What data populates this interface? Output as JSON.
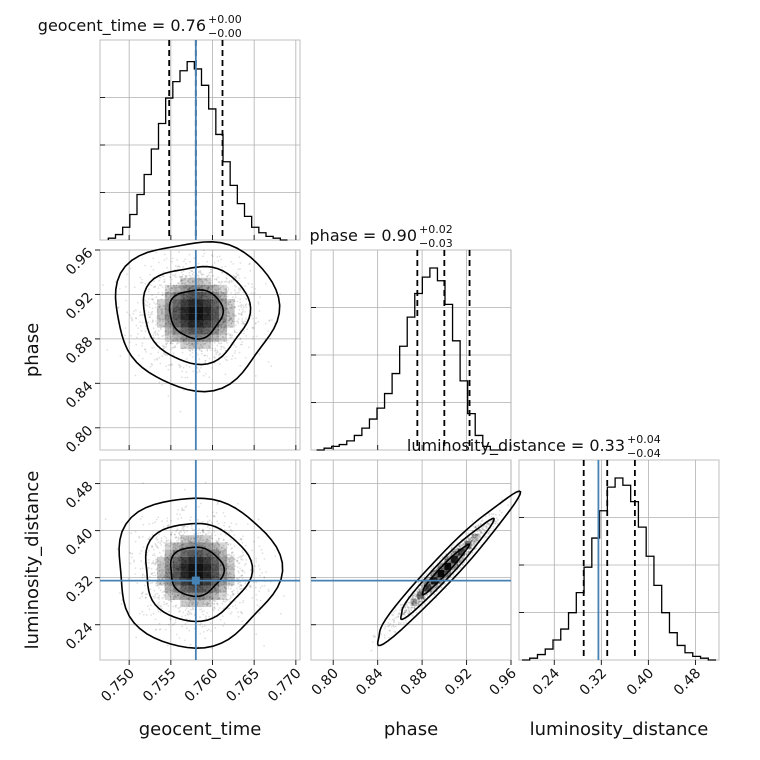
{
  "chart_data": {
    "type": "corner",
    "colors": {
      "truth": "#4682b4",
      "hist": "#000000",
      "grid": "#b0b0b0",
      "density": "#000000"
    },
    "parameters": [
      {
        "name": "geocent_time",
        "label": "geocent_time",
        "title": "geocent_time = 0.76",
        "title_plus": "+0.00",
        "title_minus": "−0.00",
        "range": [
          0.7465,
          0.7705
        ],
        "ticks": [
          0.75,
          0.755,
          0.76,
          0.765,
          0.77
        ],
        "tick_labels": [
          "0.750",
          "0.755",
          "0.760",
          "0.765",
          "0.770"
        ],
        "truth": 0.758,
        "quantiles": [
          0.7548,
          0.758,
          0.7612
        ],
        "hist": [
          0.01,
          0.03,
          0.07,
          0.14,
          0.25,
          0.36,
          0.5,
          0.64,
          0.78,
          0.87,
          0.93,
          0.98,
          0.94,
          0.85,
          0.72,
          0.58,
          0.43,
          0.3,
          0.2,
          0.13,
          0.07,
          0.04,
          0.02,
          0.01,
          0.0
        ]
      },
      {
        "name": "phase",
        "label": "phase",
        "title": "phase = 0.90",
        "title_plus": "+0.02",
        "title_minus": "−0.03",
        "range": [
          0.78,
          0.96
        ],
        "ticks": [
          0.8,
          0.84,
          0.88,
          0.92,
          0.96
        ],
        "tick_labels": [
          "0.80",
          "0.84",
          "0.88",
          "0.92",
          "0.96"
        ],
        "truth": null,
        "quantiles": [
          0.8757,
          0.9,
          0.9227
        ],
        "hist": [
          0.0,
          0.01,
          0.02,
          0.03,
          0.05,
          0.08,
          0.12,
          0.17,
          0.23,
          0.31,
          0.42,
          0.57,
          0.73,
          0.86,
          0.95,
          1.0,
          0.93,
          0.8,
          0.6,
          0.38,
          0.2,
          0.08,
          0.02,
          0.0,
          0.0
        ]
      },
      {
        "name": "luminosity_distance",
        "label": "luminosity_distance",
        "title": "luminosity_distance = 0.33",
        "title_plus": "+0.04",
        "title_minus": "−0.04",
        "range": [
          0.18,
          0.52
        ],
        "ticks": [
          0.24,
          0.32,
          0.4,
          0.48
        ],
        "tick_labels": [
          "0.24",
          "0.32",
          "0.40",
          "0.48"
        ],
        "truth": 0.315,
        "quantiles": [
          0.29,
          0.33,
          0.377
        ],
        "hist": [
          0.0,
          0.01,
          0.03,
          0.06,
          0.11,
          0.17,
          0.26,
          0.37,
          0.51,
          0.67,
          0.82,
          0.95,
          1.0,
          0.96,
          0.87,
          0.73,
          0.57,
          0.41,
          0.26,
          0.15,
          0.08,
          0.04,
          0.02,
          0.01,
          0.0
        ]
      }
    ],
    "pairs": [
      {
        "x": "geocent_time",
        "y": "phase",
        "center": [
          0.758,
          0.903
        ],
        "sigma": [
          0.0032,
          0.022
        ],
        "rho": 0.0,
        "truth_x": 0.758,
        "truth_y": null
      },
      {
        "x": "geocent_time",
        "y": "luminosity_distance",
        "center": [
          0.758,
          0.331
        ],
        "sigma": [
          0.0032,
          0.042
        ],
        "rho": 0.0,
        "truth_x": 0.758,
        "truth_y": 0.315
      },
      {
        "x": "phase",
        "y": "luminosity_distance",
        "center": [
          0.9,
          0.333
        ],
        "sigma": [
          0.021,
          0.042
        ],
        "rho": 0.97,
        "truth_x": null,
        "truth_y": 0.315
      }
    ],
    "contour_levels": [
      0.39,
      0.86,
      0.99
    ],
    "grid": true
  }
}
